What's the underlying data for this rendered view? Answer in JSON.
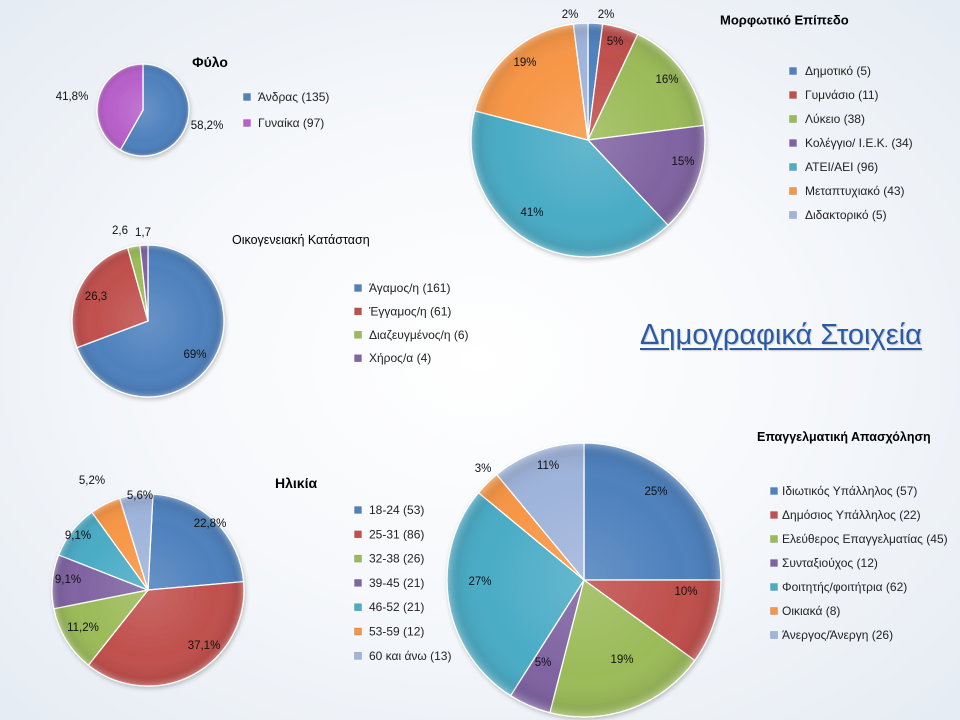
{
  "page": {
    "heading": "Δημογραφικά Στοιχεία",
    "heading_color": "#2B5BA8"
  },
  "chart_data": [
    {
      "type": "pie",
      "title": "Φύλο",
      "legend_position": "right",
      "categories": [
        "Άνδρας (135)",
        "Γυναίκα (97)"
      ],
      "values": [
        58.2,
        41.8
      ],
      "data_labels": [
        "58,2%",
        "41,8%"
      ],
      "colors": [
        "#4F81BD",
        "#B760C9"
      ]
    },
    {
      "type": "pie",
      "title": "Οικογενειακή Κατάσταση",
      "legend_position": "right",
      "categories": [
        "Άγαμος/η (161)",
        "Έγγαμος/η (61)",
        "Διαζευγμένος/η (6)",
        "Χήρος/α (4)"
      ],
      "values": [
        69,
        26.3,
        2.6,
        1.7
      ],
      "data_labels": [
        "69%",
        "26,3",
        "2,6",
        "1,7"
      ],
      "colors": [
        "#4F81BD",
        "#C0504D",
        "#9BBB59",
        "#8064A2"
      ]
    },
    {
      "type": "pie",
      "title": "Μορφωτικό Επίπεδο",
      "legend_position": "right",
      "categories": [
        "Δημοτικό (5)",
        "Γυμνάσιο (11)",
        "Λύκειο (38)",
        "Κολέγγιο/ Ι.Ε.Κ. (34)",
        "ΑΤΕΙ/ΑΕΙ (96)",
        "Μεταπτυχιακό (43)",
        "Διδακτορικό (5)"
      ],
      "values": [
        2,
        5,
        16,
        15,
        41,
        19,
        2
      ],
      "data_labels": [
        "2%",
        "5%",
        "16%",
        "15%",
        "41%",
        "19%",
        "2%"
      ],
      "colors": [
        "#4F81BD",
        "#C0504D",
        "#9BBB59",
        "#8064A2",
        "#4BACC6",
        "#F79646",
        "#9FB4DB"
      ]
    },
    {
      "type": "pie",
      "title": "Ηλικία",
      "legend_position": "right",
      "categories": [
        "18-24 (53)",
        "25-31 (86)",
        "32-38 (26)",
        "39-45 (21)",
        "46-52 (21)",
        "53-59 (12)",
        "60 και άνω (13)"
      ],
      "values": [
        22.8,
        37.1,
        11.2,
        9.1,
        9.1,
        5.2,
        5.6
      ],
      "data_labels": [
        "22,8%",
        "37,1%",
        "11,2%",
        "9,1%",
        "9,1%",
        "5,2%",
        "5,6%"
      ],
      "colors": [
        "#4F81BD",
        "#C0504D",
        "#9BBB59",
        "#8064A2",
        "#4BACC6",
        "#F79646",
        "#9FB4DB"
      ]
    },
    {
      "type": "pie",
      "title": "Επαγγελματική Απασχόληση",
      "legend_position": "right",
      "categories": [
        "Ιδιωτικός Υπάλληλος (57)",
        "Δημόσιος Υπάλληλος (22)",
        "Ελεύθερος Επαγγελματίας (45)",
        "Συνταξιούχος (12)",
        "Φοιτητής/φοιτήτρια (62)",
        "Οικιακά (8)",
        "Άνεργος/Άνεργη (26)"
      ],
      "values": [
        25,
        10,
        19,
        5,
        27,
        3,
        11
      ],
      "data_labels": [
        "25%",
        "10%",
        "19%",
        "5%",
        "27%",
        "3%",
        "11%"
      ],
      "colors": [
        "#4F81BD",
        "#C0504D",
        "#9BBB59",
        "#8064A2",
        "#4BACC6",
        "#F79646",
        "#9FB4DB"
      ]
    }
  ]
}
